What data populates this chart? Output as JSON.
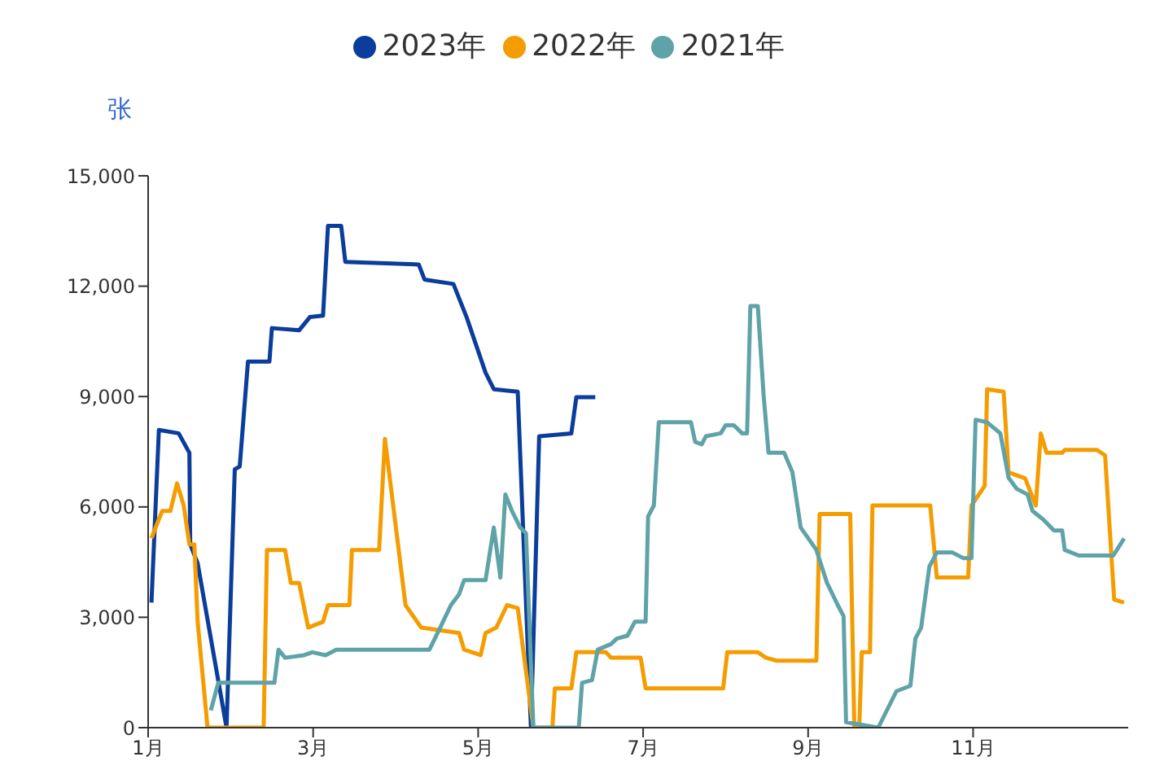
{
  "chart_data": {
    "type": "line",
    "ylabel": "张",
    "xlim": [
      1,
      12.88
    ],
    "xticks": [
      {
        "value": 1,
        "label": "1月"
      },
      {
        "value": 3,
        "label": "3月"
      },
      {
        "value": 5,
        "label": "5月"
      },
      {
        "value": 7,
        "label": "7月"
      },
      {
        "value": 9,
        "label": "9月"
      },
      {
        "value": 11,
        "label": "11月"
      }
    ],
    "ylim": [
      0,
      15000
    ],
    "yticks": [
      0,
      {
        "value": 3000,
        "label": "3,000"
      },
      {
        "value": 6000,
        "label": "6,000"
      },
      {
        "value": 9000,
        "label": "9,000"
      },
      {
        "value": 12000,
        "label": "12,000"
      },
      {
        "value": 15000,
        "label": "15,000"
      }
    ],
    "grid": false,
    "legend": "top",
    "marker": "none",
    "line_style": "solid",
    "series": [
      {
        "name": "2023年",
        "color": "#0a3d9c",
        "x": [
          1.04,
          1.13,
          1.37,
          1.5,
          1.51,
          1.6,
          1.95,
          2.05,
          2.11,
          2.21,
          2.47,
          2.5,
          2.83,
          2.96,
          3.12,
          3.18,
          3.34,
          3.39,
          4.28,
          4.35,
          4.7,
          4.86,
          5.09,
          5.19,
          5.48,
          5.64,
          5.74,
          6.13,
          6.19,
          6.42
        ],
        "values": [
          3400,
          8090,
          8000,
          7470,
          4980,
          4470,
          0,
          7020,
          7100,
          9950,
          9950,
          10860,
          10800,
          11160,
          11200,
          13640,
          13640,
          12660,
          12590,
          12180,
          12060,
          11160,
          9650,
          9200,
          9130,
          0,
          7920,
          8000,
          8980,
          8980
        ]
      },
      {
        "name": "2022年",
        "color": "#f59c00",
        "x": [
          1.04,
          1.17,
          1.27,
          1.35,
          1.43,
          1.5,
          1.56,
          1.6,
          1.72,
          2.4,
          2.44,
          2.66,
          2.73,
          2.83,
          2.94,
          3.12,
          3.18,
          3.44,
          3.47,
          3.8,
          3.87,
          4.12,
          4.31,
          4.77,
          4.83,
          5.03,
          5.09,
          5.22,
          5.35,
          5.48,
          5.67,
          5.9,
          5.93,
          6.13,
          6.19,
          6.55,
          6.61,
          6.97,
          7.03,
          7.97,
          8.02,
          8.39,
          8.49,
          8.62,
          9.1,
          9.14,
          9.51,
          9.56,
          9.62,
          9.65,
          9.75,
          9.78,
          10.48,
          10.56,
          10.94,
          10.98,
          11.14,
          11.17,
          11.37,
          11.43,
          11.63,
          11.76,
          11.82,
          11.89,
          12.08,
          12.11,
          12.5,
          12.6,
          12.71,
          12.83
        ],
        "values": [
          5150,
          5890,
          5890,
          6640,
          6050,
          4980,
          4980,
          2880,
          0,
          0,
          4830,
          4830,
          3930,
          3930,
          2720,
          2880,
          3330,
          3330,
          4830,
          4830,
          7850,
          3330,
          2720,
          2570,
          2120,
          1970,
          2570,
          2720,
          3330,
          3250,
          0,
          0,
          1070,
          1070,
          2050,
          2050,
          1900,
          1900,
          1070,
          1070,
          2050,
          2050,
          1900,
          1820,
          1820,
          5810,
          5810,
          0,
          0,
          2050,
          2050,
          6040,
          6040,
          4080,
          4080,
          6040,
          6570,
          9200,
          9130,
          6940,
          6780,
          6040,
          8000,
          7470,
          7470,
          7550,
          7550,
          7400,
          3480,
          3400
        ]
      },
      {
        "name": "2021年",
        "color": "#5fa3a8",
        "x": [
          1.76,
          1.85,
          2.53,
          2.58,
          2.66,
          2.89,
          2.99,
          3.15,
          3.28,
          4.41,
          4.54,
          4.67,
          4.77,
          4.83,
          5.09,
          5.19,
          5.27,
          5.33,
          5.41,
          5.51,
          5.58,
          5.67,
          6.22,
          6.26,
          6.38,
          6.45,
          6.61,
          6.68,
          6.81,
          6.9,
          7.03,
          7.06,
          7.13,
          7.19,
          7.58,
          7.63,
          7.71,
          7.76,
          7.94,
          8.0,
          8.1,
          8.2,
          8.26,
          8.3,
          8.39,
          8.46,
          8.52,
          8.71,
          8.81,
          8.91,
          9.1,
          9.23,
          9.36,
          9.43,
          9.46,
          9.85,
          10.07,
          10.24,
          10.3,
          10.37,
          10.47,
          10.56,
          10.75,
          10.88,
          10.98,
          11.03,
          11.17,
          11.33,
          11.43,
          11.53,
          11.66,
          11.72,
          11.85,
          11.98,
          12.08,
          12.11,
          12.28,
          12.7,
          12.83
        ],
        "values": [
          470,
          1220,
          1220,
          2120,
          1900,
          1970,
          2050,
          1970,
          2120,
          2120,
          2720,
          3330,
          3630,
          4010,
          4010,
          5440,
          4080,
          6340,
          5890,
          5440,
          5280,
          0,
          0,
          1220,
          1290,
          2120,
          2270,
          2420,
          2500,
          2880,
          2880,
          5740,
          6040,
          8300,
          8300,
          7770,
          7700,
          7920,
          8000,
          8220,
          8220,
          8000,
          8000,
          11460,
          11460,
          9050,
          7470,
          7470,
          6940,
          5440,
          4830,
          3930,
          3330,
          3030,
          150,
          0,
          990,
          1140,
          2420,
          2720,
          4380,
          4760,
          4760,
          4610,
          4610,
          8370,
          8300,
          8000,
          6790,
          6490,
          6340,
          5890,
          5660,
          5360,
          5360,
          4830,
          4680,
          4680,
          5140
        ]
      }
    ]
  }
}
